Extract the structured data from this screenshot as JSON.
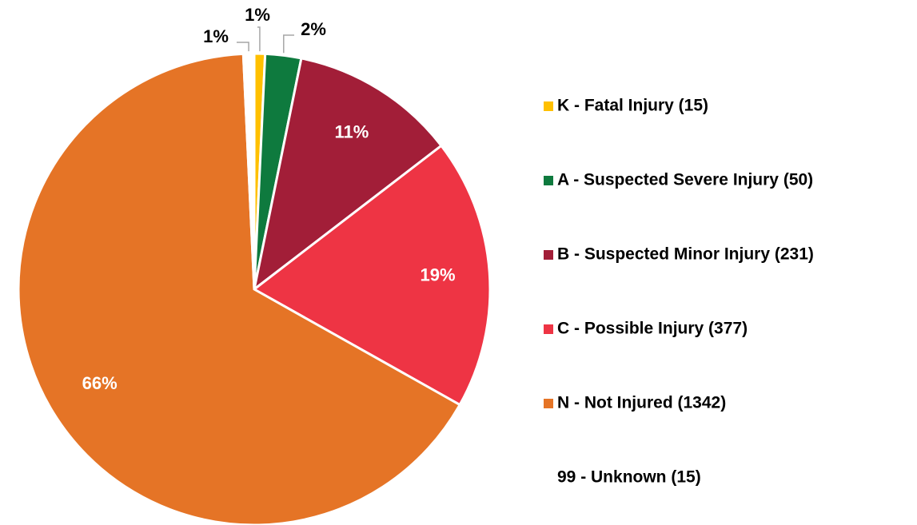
{
  "chart_data": {
    "type": "pie",
    "categories": [
      "K - Fatal Injury (15)",
      "A - Suspected Severe Injury (50)",
      "B - Suspected Minor Injury (231)",
      "C - Possible Injury (377)",
      "N - Not Injured (1342)",
      "99 - Unknown (15)"
    ],
    "values": [
      0.74,
      2.46,
      11.38,
      18.57,
      66.11,
      0.74
    ],
    "value_labels": [
      "1%",
      "2%",
      "11%",
      "19%",
      "66%",
      "1%"
    ],
    "colors": [
      "#ffc000",
      "#0e7a3e",
      "#a21e38",
      "#ee3444",
      "#e57426",
      "#ffffff"
    ],
    "legend": "right"
  }
}
